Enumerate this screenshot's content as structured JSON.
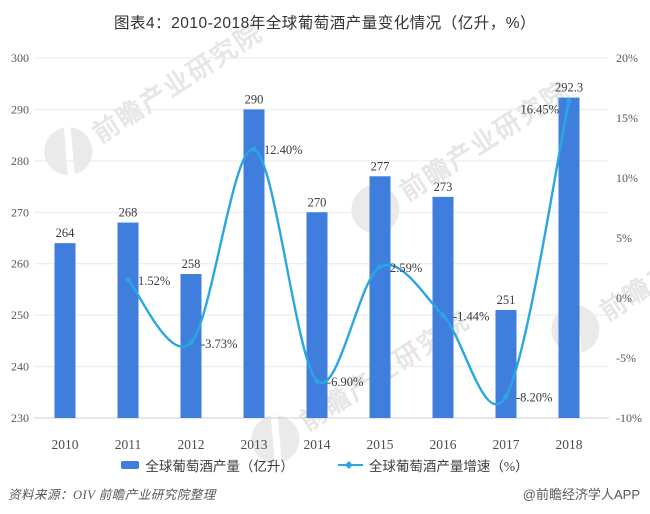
{
  "title": "图表4：2010-2018年全球葡萄酒产量变化情况（亿升，%）",
  "colors": {
    "bar": "#3F7EDD",
    "line": "#2AA7E3",
    "grid": "#E9E9E9",
    "axis_line": "#CFCFCF",
    "axis_text": "#595959",
    "label_text": "#3B3B3B",
    "xlabel_text": "#4D4D4D"
  },
  "chart_data": {
    "type": "bar",
    "subtype": "bar+line combo",
    "title": "图表4：2010-2018年全球葡萄酒产量变化情况（亿升，%）",
    "categories": [
      "2010",
      "2011",
      "2012",
      "2013",
      "2014",
      "2015",
      "2016",
      "2017",
      "2018"
    ],
    "series": [
      {
        "name": "全球葡萄酒产量（亿升）",
        "type": "bar",
        "axis": "left",
        "values": [
          264,
          268,
          258,
          290,
          270,
          277,
          273,
          251,
          292.3
        ],
        "labels": [
          "264",
          "268",
          "258",
          "290",
          "270",
          "277",
          "273",
          "251",
          "292.3"
        ]
      },
      {
        "name": "全球葡萄酒产量增速（%）",
        "type": "line",
        "axis": "right",
        "values": [
          null,
          1.52,
          -3.73,
          12.4,
          -6.9,
          2.59,
          -1.44,
          -8.2,
          16.45
        ],
        "labels": [
          null,
          "1.52%",
          "-3.73%",
          "12.40%",
          "-6.90%",
          "2.59%",
          "-1.44%",
          "-8.20%",
          "16.45%"
        ],
        "label_sides": [
          null,
          "right",
          "right",
          "right",
          "right",
          "right",
          "right",
          "right",
          "left"
        ]
      }
    ],
    "y_axis": {
      "min": 230,
      "max": 300,
      "step": 10,
      "ticks": [
        "300",
        "290",
        "280",
        "270",
        "260",
        "250",
        "240",
        "230"
      ]
    },
    "y2_axis": {
      "min": -10,
      "max": 20,
      "step": 5,
      "ticks": [
        "20%",
        "15%",
        "10%",
        "5%",
        "0%",
        "-5%",
        "-10%"
      ]
    },
    "grid": true,
    "legend_position": "bottom"
  },
  "legend": [
    {
      "label": "全球葡萄酒产量（亿升）",
      "marker": "bar-swatch"
    },
    {
      "label": "全球葡萄酒产量增速（%）",
      "marker": "line-marker"
    }
  ],
  "watermark": {
    "text": "前瞻产业研究院"
  },
  "footer": {
    "source": "资料来源：OIV  前瞻产业研究院整理",
    "credit": "@前瞻经济学人APP"
  }
}
